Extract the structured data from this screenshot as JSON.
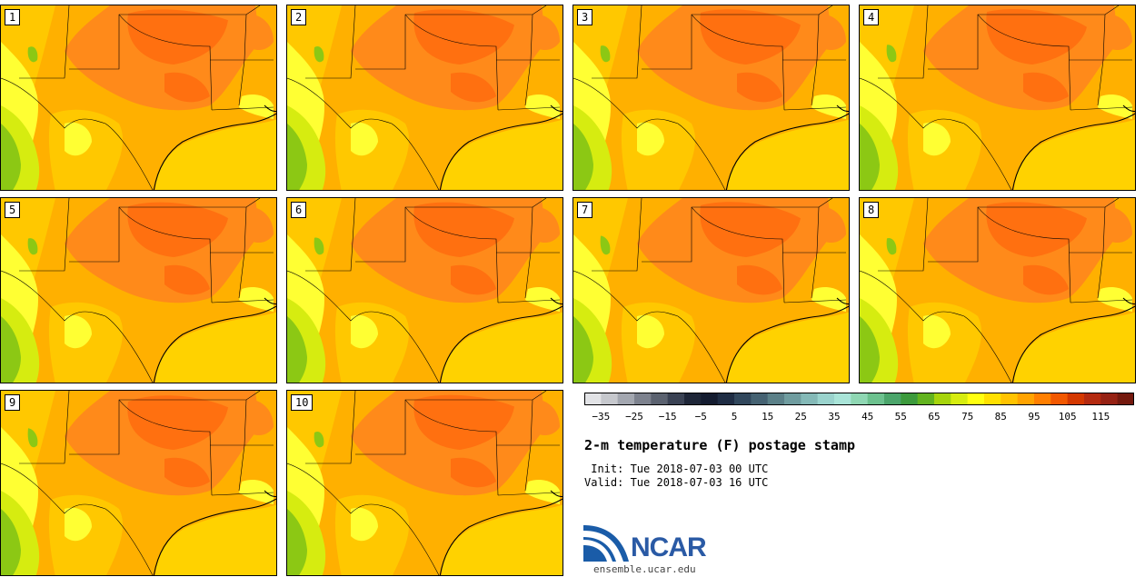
{
  "panels": [
    {
      "label": "1"
    },
    {
      "label": "2"
    },
    {
      "label": "3"
    },
    {
      "label": "4"
    },
    {
      "label": "5"
    },
    {
      "label": "6"
    },
    {
      "label": "7"
    },
    {
      "label": "8"
    },
    {
      "label": "9"
    },
    {
      "label": "10"
    }
  ],
  "colorbar": {
    "colors": [
      "#e2e3e6",
      "#c6c8cd",
      "#a3a7b0",
      "#7d828e",
      "#5b6270",
      "#3a4254",
      "#1e2638",
      "#141c30",
      "#1f2d44",
      "#31475c",
      "#456272",
      "#5b8088",
      "#6f9c9f",
      "#84b9b7",
      "#9ad3cd",
      "#a9e4d8",
      "#8fd7b3",
      "#6cc18e",
      "#4ba56b",
      "#3c9a3c",
      "#62b31f",
      "#a6d40c",
      "#d6ec10",
      "#ffff10",
      "#ffe000",
      "#ffc300",
      "#ffa300",
      "#ff7f00",
      "#f25800",
      "#d43800",
      "#b42a10",
      "#962214",
      "#74190e"
    ],
    "tick_labels": [
      "−35",
      "−25",
      "−15",
      "−5",
      "5",
      "15",
      "25",
      "35",
      "45",
      "55",
      "65",
      "75",
      "85",
      "95",
      "105",
      "115"
    ]
  },
  "title": "2-m temperature (F) postage stamp",
  "init_text": " Init: Tue 2018-07-03 00 UTC",
  "valid_text": "Valid: Tue 2018-07-03 16 UTC",
  "logo": {
    "text": "NCAR",
    "url_text": "ensemble.ucar.edu"
  },
  "map_colors": {
    "land_base": "#ffb000",
    "hot": "#ff8a1a",
    "hotter": "#ff7010",
    "warm": "#ffc800",
    "gulf": "#ffd200",
    "cool": "#ffff33",
    "cooler": "#d6ec10",
    "coolest": "#8cc814",
    "border": "#000000"
  }
}
